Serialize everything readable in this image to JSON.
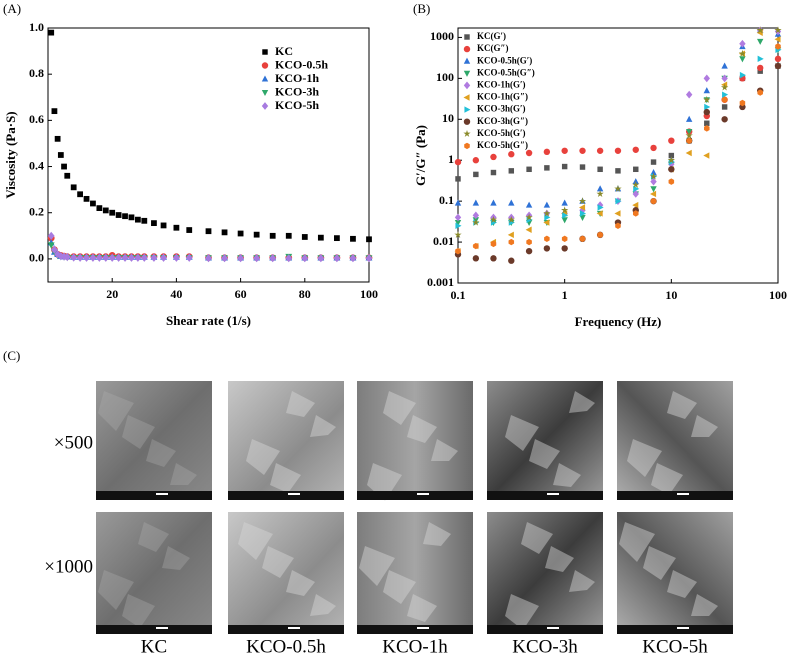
{
  "chart_data": [
    {
      "type": "scatter",
      "panel_label": "(A)",
      "x_label": "Shear rate (1/s)",
      "y_label": "Viscosity (Pa·S)",
      "xlim": [
        0,
        100
      ],
      "xticks": [
        20,
        40,
        60,
        80,
        100
      ],
      "ylim": [
        -0.1,
        1.0
      ],
      "yticks": [
        {
          "value": 0,
          "label": "0.0"
        },
        0.2,
        0.4,
        0.6,
        0.8,
        {
          "value": 1,
          "label": "1.0"
        }
      ],
      "legend": "upper right",
      "x": [
        1,
        2,
        3,
        4,
        5,
        6,
        8,
        10,
        12,
        14,
        16,
        18,
        20,
        22,
        24,
        26,
        28,
        30,
        33,
        36,
        40,
        44,
        50,
        55,
        60,
        65,
        70,
        75,
        80,
        85,
        90,
        95,
        100
      ],
      "series": [
        {
          "name": "KC",
          "color": "#000000",
          "marker": "square",
          "values": [
            0.98,
            0.64,
            0.52,
            0.45,
            0.4,
            0.36,
            0.31,
            0.28,
            0.26,
            0.24,
            0.22,
            0.21,
            0.2,
            0.19,
            0.185,
            0.18,
            0.17,
            0.165,
            0.155,
            0.145,
            0.135,
            0.125,
            0.12,
            0.115,
            0.11,
            0.105,
            0.1,
            0.1,
            0.095,
            0.092,
            0.09,
            0.087,
            0.085
          ]
        },
        {
          "name": "KCO-0.5h",
          "color": "#e8413c",
          "marker": "circle",
          "values": [
            0.09,
            0.04,
            0.02,
            0.015,
            0.012,
            0.01,
            0.01,
            0.01,
            0.01,
            0.01,
            0.01,
            0.01,
            0.015,
            0.01,
            0.01,
            0.01,
            0.01,
            0.01,
            0.01,
            0.01,
            0.01,
            0.01,
            0.005,
            0.005,
            0.005,
            0.005,
            0.005,
            0.005,
            0.005,
            0.005,
            0.005,
            0.005,
            0.005
          ]
        },
        {
          "name": "KCO-1h",
          "color": "#2f72d6",
          "marker": "triangle-up",
          "values": [
            0.07,
            0.03,
            0.02,
            0.012,
            0.01,
            0.01,
            0.008,
            0.008,
            0.008,
            0.008,
            0.008,
            0.008,
            0.008,
            0.008,
            0.008,
            0.008,
            0.008,
            0.008,
            0.008,
            0.008,
            0.008,
            0.008,
            0.005,
            0.005,
            0.005,
            0.005,
            0.005,
            0.005,
            0.005,
            0.005,
            0.005,
            0.005,
            0.005
          ]
        },
        {
          "name": "KCO-3h",
          "color": "#2fa86a",
          "marker": "triangle-down",
          "values": [
            0.06,
            0.03,
            0.015,
            0.01,
            0.008,
            0.006,
            0.005,
            0.005,
            0.005,
            0.005,
            0.005,
            0.005,
            0.005,
            0.005,
            0.005,
            0.005,
            0.005,
            0.005,
            0.005,
            0.005,
            0.005,
            0.005,
            0.004,
            0.004,
            0.004,
            0.004,
            0.004,
            0.01,
            0.004,
            0.004,
            0.004,
            0.004,
            0.004
          ]
        },
        {
          "name": "KCO-5h",
          "color": "#a77be0",
          "marker": "diamond",
          "values": [
            0.1,
            0.04,
            0.02,
            0.012,
            0.01,
            0.008,
            0.006,
            0.005,
            0.005,
            0.005,
            0.005,
            0.005,
            0.005,
            0.005,
            0.005,
            0.005,
            0.005,
            0.005,
            0.005,
            0.005,
            0.005,
            0.005,
            0.003,
            0.003,
            0.003,
            0.003,
            0.003,
            0.003,
            0.003,
            0.003,
            0.003,
            0.003,
            0.003
          ]
        }
      ]
    },
    {
      "type": "scatter",
      "panel_label": "(B)",
      "x_label": "Frequency (Hz)",
      "y_label": "G′/G″ (Pa)",
      "xscale": "log",
      "yscale": "log",
      "xlim": [
        0.1,
        100
      ],
      "xticks": [
        0.1,
        1,
        10,
        100
      ],
      "ylim": [
        0.001,
        1700
      ],
      "yticks": [
        0.001,
        0.01,
        0.1,
        1,
        10,
        100,
        1000
      ],
      "legend": "upper left",
      "x": [
        0.1,
        0.147,
        0.215,
        0.316,
        0.464,
        0.681,
        1,
        1.47,
        2.15,
        3.16,
        4.64,
        6.81,
        10,
        14.7,
        21.5,
        31.6,
        46.4,
        68.1,
        100
      ],
      "series": [
        {
          "name": "KC(G′)",
          "color": "#555555",
          "marker": "square",
          "values": [
            0.35,
            0.45,
            0.5,
            0.55,
            0.6,
            0.65,
            0.7,
            0.68,
            0.6,
            0.55,
            0.6,
            0.9,
            1.3,
            3,
            8,
            20,
            100,
            150,
            200
          ]
        },
        {
          "name": "KC(G″)",
          "color": "#e8413c",
          "marker": "circle",
          "values": [
            0.9,
            1.0,
            1.2,
            1.4,
            1.5,
            1.6,
            1.7,
            1.7,
            1.7,
            1.7,
            1.8,
            2,
            3,
            5,
            12,
            30,
            100,
            180,
            300
          ]
        },
        {
          "name": "KCO-0.5h(G′)",
          "color": "#2f72d6",
          "marker": "triangle-up",
          "values": [
            0.09,
            0.09,
            0.09,
            0.09,
            0.08,
            0.08,
            0.09,
            0.1,
            0.2,
            0.2,
            0.3,
            0.5,
            1,
            10,
            50,
            200,
            600,
            1500,
            1200
          ]
        },
        {
          "name": "KCO-0.5h(G″)",
          "color": "#2fa86a",
          "marker": "triangle-down",
          "values": [
            0.03,
            0.035,
            0.03,
            0.03,
            0.03,
            0.03,
            0.035,
            0.04,
            0.05,
            0.1,
            0.15,
            0.2,
            0.8,
            5,
            30,
            100,
            300,
            800,
            500
          ]
        },
        {
          "name": "KCO-1h(G′)",
          "color": "#b07be0",
          "marker": "diamond",
          "values": [
            0.04,
            0.045,
            0.04,
            0.04,
            0.045,
            0.05,
            0.05,
            0.06,
            0.08,
            0.1,
            0.15,
            0.3,
            0.8,
            40,
            100,
            100,
            700,
            1500,
            1400
          ]
        },
        {
          "name": "KCO-1h(G″)",
          "color": "#e0a020",
          "marker": "triangle-left",
          "values": [
            0.006,
            0.008,
            0.01,
            0.015,
            0.02,
            0.03,
            0.05,
            0.07,
            0.05,
            0.05,
            0.08,
            0.15,
            0.6,
            1.5,
            1.3,
            70,
            400,
            1300,
            900
          ]
        },
        {
          "name": "KCO-3h(G′)",
          "color": "#22c0d8",
          "marker": "triangle-right",
          "values": [
            0.025,
            0.03,
            0.03,
            0.03,
            0.035,
            0.04,
            0.045,
            0.05,
            0.07,
            0.1,
            0.2,
            0.4,
            0.9,
            3,
            20,
            40,
            120,
            300,
            500
          ]
        },
        {
          "name": "KCO-3h(G″)",
          "color": "#6b3a2a",
          "marker": "circle",
          "values": [
            0.005,
            0.004,
            0.004,
            0.0035,
            0.006,
            0.007,
            0.007,
            0.012,
            0.015,
            0.03,
            0.06,
            0.1,
            0.6,
            3,
            15,
            10,
            20,
            50,
            200
          ]
        },
        {
          "name": "KCO-5h(G′)",
          "color": "#8a8a2a",
          "marker": "star",
          "values": [
            0.015,
            0.03,
            0.035,
            0.035,
            0.04,
            0.05,
            0.06,
            0.1,
            0.15,
            0.2,
            0.25,
            0.4,
            1,
            4,
            30,
            60,
            400,
            1500,
            1500
          ]
        },
        {
          "name": "KCO-5h(G″)",
          "color": "#f07820",
          "marker": "hexagon",
          "values": [
            0.006,
            0.008,
            0.009,
            0.01,
            0.01,
            0.012,
            0.012,
            0.012,
            0.015,
            0.025,
            0.05,
            0.1,
            0.3,
            3,
            6,
            30,
            25,
            45,
            600
          ]
        }
      ]
    }
  ],
  "sem_figure": {
    "panel_label": "(C)",
    "magnifications": [
      "×500",
      "×1000"
    ],
    "samples": [
      "KC",
      "KCO-0.5h",
      "KCO-1h",
      "KCO-3h",
      "KCO-5h"
    ]
  }
}
